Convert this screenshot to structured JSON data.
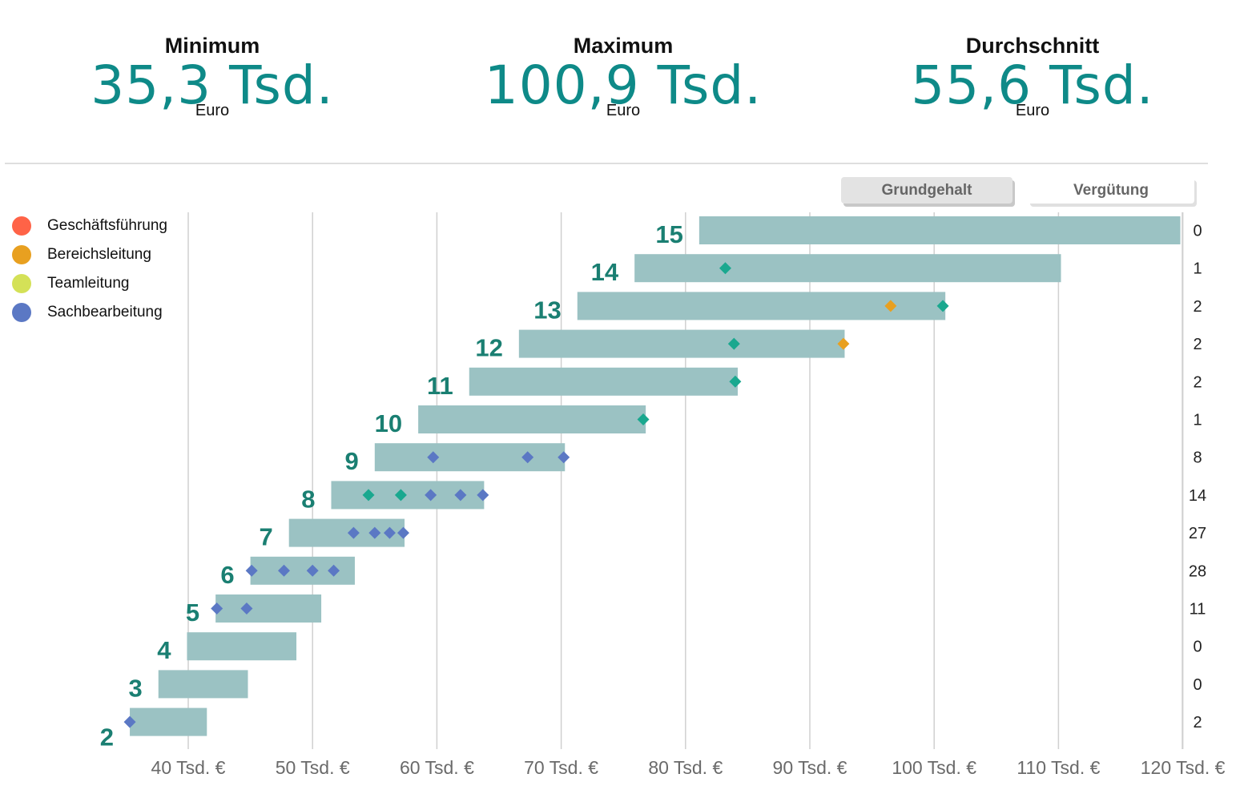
{
  "kpis": [
    {
      "label": "Minimum",
      "value": "35,3 Tsd.",
      "unit": "Euro"
    },
    {
      "label": "Maximum",
      "value": "100,9 Tsd.",
      "unit": "Euro"
    },
    {
      "label": "Durchschnitt",
      "value": "55,6 Tsd.",
      "unit": "Euro"
    }
  ],
  "toggles": {
    "grundgehalt": "Grundgehalt",
    "verguetung": "Vergütung",
    "active": "Grundgehalt"
  },
  "legend": [
    {
      "label": "Geschäftsführung",
      "color": "#ff6347"
    },
    {
      "label": "Bereichsleitung",
      "color": "#e8a020"
    },
    {
      "label": "Teamleitung",
      "color": "#d4e157"
    },
    {
      "label": "Sachbearbeitung",
      "color": "#5b78c4"
    }
  ],
  "chart_data": {
    "type": "range-bar",
    "x_ticks": [
      40,
      50,
      60,
      70,
      80,
      90,
      100,
      110,
      120
    ],
    "x_tick_labels": [
      "40 Tsd. €",
      "50 Tsd. €",
      "60 Tsd. €",
      "70 Tsd. €",
      "80 Tsd. €",
      "90 Tsd. €",
      "100 Tsd. €",
      "110 Tsd. €",
      "120 Tsd. €"
    ],
    "xlim": [
      34.5,
      120.5
    ],
    "grid": true,
    "bar_color": "#9bc2c3",
    "label_color": "#1a7f72",
    "marker_colors": {
      "sachbearbeitung": "#5b78c4",
      "teamleitung": "#1aa88f",
      "bereichsleitung": "#e8a020"
    },
    "groups": [
      {
        "label": "15",
        "min": 81.1,
        "max": 119.8,
        "count": "0",
        "points": []
      },
      {
        "label": "14",
        "min": 75.9,
        "max": 110.2,
        "count": "1",
        "points": [
          {
            "x": 83.2,
            "role": "teamleitung"
          }
        ]
      },
      {
        "label": "13",
        "min": 71.3,
        "max": 100.9,
        "count": "2",
        "points": [
          {
            "x": 96.5,
            "role": "bereichsleitung"
          },
          {
            "x": 100.7,
            "role": "teamleitung"
          }
        ]
      },
      {
        "label": "12",
        "min": 66.6,
        "max": 92.8,
        "count": "2",
        "points": [
          {
            "x": 83.9,
            "role": "teamleitung"
          },
          {
            "x": 92.7,
            "role": "bereichsleitung"
          }
        ]
      },
      {
        "label": "11",
        "min": 62.6,
        "max": 84.2,
        "count": "2",
        "points": [
          {
            "x": 84.0,
            "role": "teamleitung"
          }
        ]
      },
      {
        "label": "10",
        "min": 58.5,
        "max": 76.8,
        "count": "1",
        "points": [
          {
            "x": 76.6,
            "role": "teamleitung"
          }
        ]
      },
      {
        "label": "9",
        "min": 55.0,
        "max": 70.3,
        "count": "8",
        "points": [
          {
            "x": 59.7,
            "role": "sachbearbeitung"
          },
          {
            "x": 67.3,
            "role": "sachbearbeitung"
          },
          {
            "x": 70.2,
            "role": "sachbearbeitung"
          }
        ]
      },
      {
        "label": "8",
        "min": 51.5,
        "max": 63.8,
        "count": "14",
        "points": [
          {
            "x": 54.5,
            "role": "teamleitung"
          },
          {
            "x": 57.1,
            "role": "teamleitung"
          },
          {
            "x": 59.5,
            "role": "sachbearbeitung"
          },
          {
            "x": 61.9,
            "role": "sachbearbeitung"
          },
          {
            "x": 63.7,
            "role": "sachbearbeitung"
          }
        ]
      },
      {
        "label": "7",
        "min": 48.1,
        "max": 57.4,
        "count": "27",
        "points": [
          {
            "x": 53.3,
            "role": "sachbearbeitung"
          },
          {
            "x": 55.0,
            "role": "sachbearbeitung"
          },
          {
            "x": 56.2,
            "role": "sachbearbeitung"
          },
          {
            "x": 57.3,
            "role": "sachbearbeitung"
          }
        ]
      },
      {
        "label": "6",
        "min": 45.0,
        "max": 53.4,
        "count": "28",
        "points": [
          {
            "x": 45.1,
            "role": "sachbearbeitung"
          },
          {
            "x": 47.7,
            "role": "sachbearbeitung"
          },
          {
            "x": 50.0,
            "role": "sachbearbeitung"
          },
          {
            "x": 51.7,
            "role": "sachbearbeitung"
          }
        ]
      },
      {
        "label": "5",
        "min": 42.2,
        "max": 50.7,
        "count": "11",
        "points": [
          {
            "x": 42.3,
            "role": "sachbearbeitung"
          },
          {
            "x": 44.7,
            "role": "sachbearbeitung"
          }
        ]
      },
      {
        "label": "4",
        "min": 39.9,
        "max": 48.7,
        "count": "0",
        "points": []
      },
      {
        "label": "3",
        "min": 37.6,
        "max": 44.8,
        "count": "0",
        "points": []
      },
      {
        "label": "2",
        "min": 35.3,
        "max": 41.5,
        "count": "2",
        "points": [
          {
            "x": 35.3,
            "role": "sachbearbeitung"
          }
        ]
      }
    ]
  }
}
